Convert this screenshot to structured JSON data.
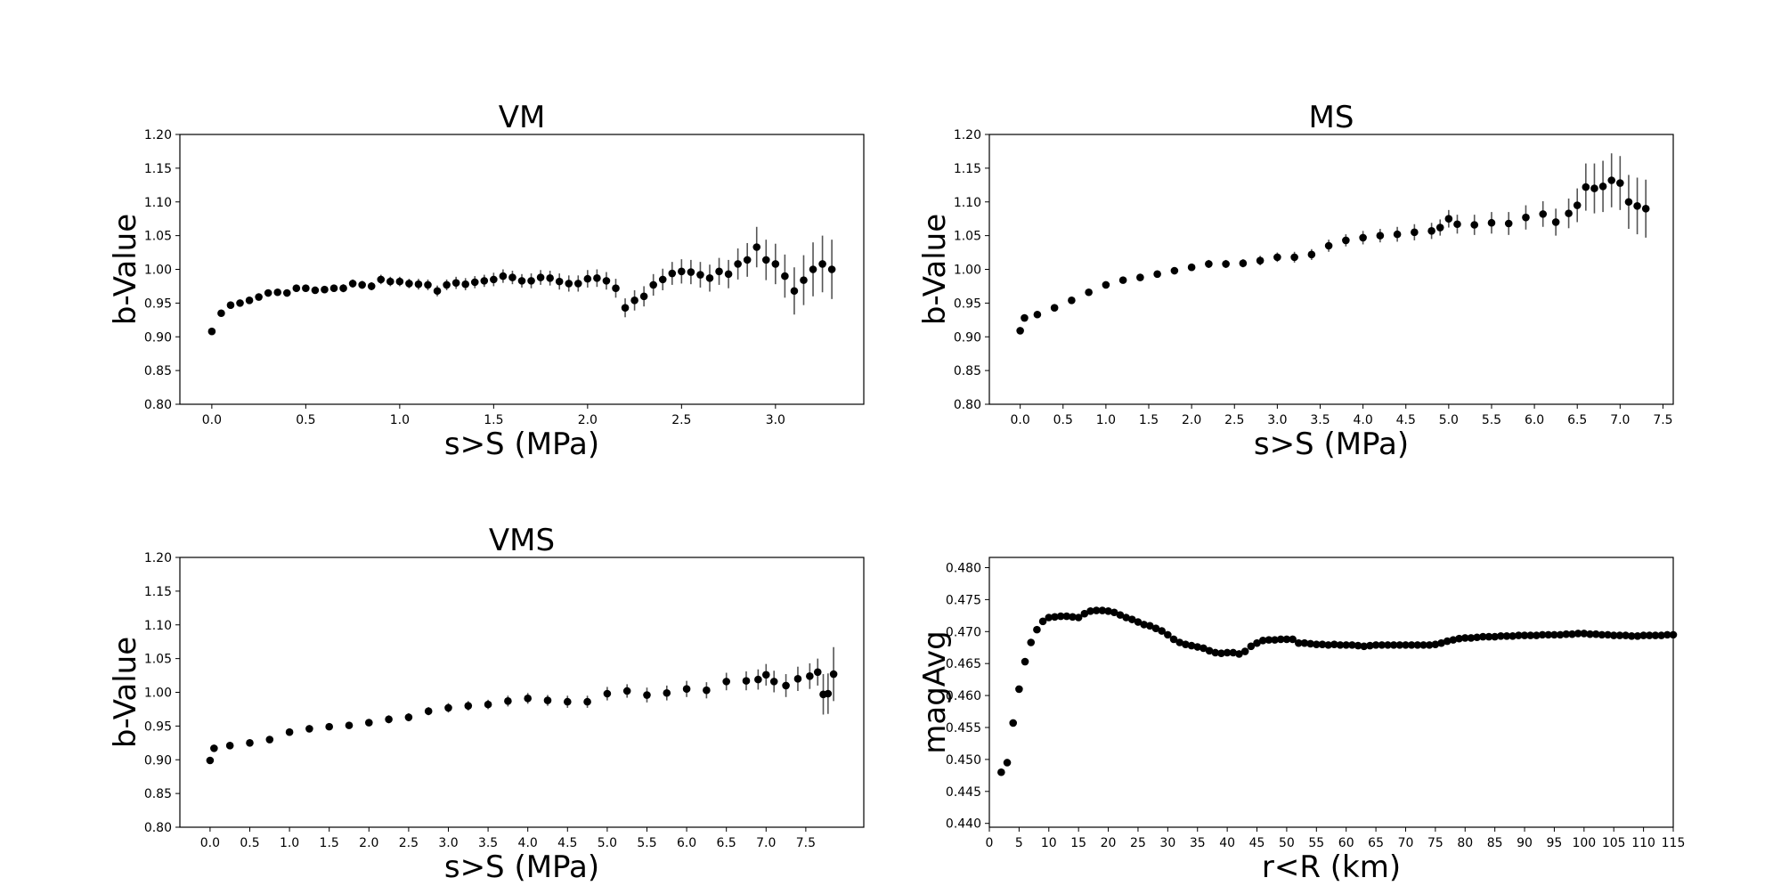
{
  "chart_data": [
    {
      "type": "scatter",
      "title": "VM",
      "xlabel": "s>S (MPa)",
      "ylabel": "b-Value",
      "xlim": [
        -0.17,
        3.47
      ],
      "ylim": [
        0.8,
        1.2
      ],
      "xticks": [
        0.0,
        0.5,
        1.0,
        1.5,
        2.0,
        2.5,
        3.0
      ],
      "yticks": [
        0.8,
        0.85,
        0.9,
        0.95,
        1.0,
        1.05,
        1.1,
        1.15,
        1.2
      ],
      "tick_decimals": {
        "x": 1,
        "y": 2
      },
      "error_bars": true,
      "points": [
        [
          0.0,
          0.908
        ],
        [
          0.05,
          0.935
        ],
        [
          0.1,
          0.947
        ],
        [
          0.15,
          0.95
        ],
        [
          0.2,
          0.954
        ],
        [
          0.25,
          0.959
        ],
        [
          0.3,
          0.965
        ],
        [
          0.35,
          0.966
        ],
        [
          0.4,
          0.965
        ],
        [
          0.45,
          0.972
        ],
        [
          0.5,
          0.972
        ],
        [
          0.55,
          0.969
        ],
        [
          0.6,
          0.97
        ],
        [
          0.65,
          0.972
        ],
        [
          0.7,
          0.972
        ],
        [
          0.75,
          0.979
        ],
        [
          0.8,
          0.977
        ],
        [
          0.85,
          0.975
        ],
        [
          0.9,
          0.985
        ],
        [
          0.95,
          0.982
        ],
        [
          1.0,
          0.982
        ],
        [
          1.05,
          0.979
        ],
        [
          1.1,
          0.978
        ],
        [
          1.15,
          0.977
        ],
        [
          1.2,
          0.968
        ],
        [
          1.25,
          0.977
        ],
        [
          1.3,
          0.98
        ],
        [
          1.35,
          0.978
        ],
        [
          1.4,
          0.981
        ],
        [
          1.45,
          0.983
        ],
        [
          1.5,
          0.985
        ],
        [
          1.55,
          0.99
        ],
        [
          1.6,
          0.988
        ],
        [
          1.65,
          0.983
        ],
        [
          1.7,
          0.983
        ],
        [
          1.75,
          0.988
        ],
        [
          1.8,
          0.987
        ],
        [
          1.85,
          0.982
        ],
        [
          1.9,
          0.979
        ],
        [
          1.95,
          0.979
        ],
        [
          2.0,
          0.986
        ],
        [
          2.05,
          0.987
        ],
        [
          2.1,
          0.983
        ],
        [
          2.15,
          0.972
        ],
        [
          2.2,
          0.943
        ],
        [
          2.25,
          0.954
        ],
        [
          2.3,
          0.96
        ],
        [
          2.35,
          0.977
        ],
        [
          2.4,
          0.985
        ],
        [
          2.45,
          0.994
        ],
        [
          2.5,
          0.997
        ],
        [
          2.55,
          0.996
        ],
        [
          2.6,
          0.992
        ],
        [
          2.65,
          0.987
        ],
        [
          2.7,
          0.997
        ],
        [
          2.75,
          0.993
        ],
        [
          2.8,
          1.008
        ],
        [
          2.85,
          1.014
        ],
        [
          2.9,
          1.033
        ],
        [
          2.95,
          1.014
        ],
        [
          3.0,
          1.008
        ],
        [
          3.05,
          0.99
        ],
        [
          3.1,
          0.968
        ],
        [
          3.15,
          0.984
        ],
        [
          3.2,
          1.0
        ],
        [
          3.25,
          1.008
        ],
        [
          3.3,
          1.0
        ]
      ],
      "errors": [
        0,
        0.003,
        0.003,
        0.003,
        0.003,
        0.004,
        0.004,
        0.004,
        0.004,
        0.004,
        0.005,
        0.005,
        0.005,
        0.005,
        0.006,
        0.006,
        0.006,
        0.006,
        0.007,
        0.007,
        0.007,
        0.007,
        0.008,
        0.008,
        0.008,
        0.008,
        0.009,
        0.009,
        0.009,
        0.009,
        0.01,
        0.01,
        0.01,
        0.01,
        0.011,
        0.011,
        0.011,
        0.012,
        0.012,
        0.012,
        0.013,
        0.013,
        0.013,
        0.014,
        0.014,
        0.015,
        0.015,
        0.016,
        0.016,
        0.017,
        0.018,
        0.018,
        0.019,
        0.02,
        0.02,
        0.021,
        0.023,
        0.025,
        0.03,
        0.03,
        0.03,
        0.032,
        0.035,
        0.037,
        0.04,
        0.042,
        0.044
      ]
    },
    {
      "type": "scatter",
      "title": "MS",
      "xlabel": "s>S (MPa)",
      "ylabel": "b-Value",
      "xlim": [
        -0.36,
        7.62
      ],
      "ylim": [
        0.8,
        1.2
      ],
      "xticks": [
        0.0,
        0.5,
        1.0,
        1.5,
        2.0,
        2.5,
        3.0,
        3.5,
        4.0,
        4.5,
        5.0,
        5.5,
        6.0,
        6.5,
        7.0,
        7.5
      ],
      "yticks": [
        0.8,
        0.85,
        0.9,
        0.95,
        1.0,
        1.05,
        1.1,
        1.15,
        1.2
      ],
      "tick_decimals": {
        "x": 1,
        "y": 2
      },
      "error_bars": true,
      "points": [
        [
          0.0,
          0.909
        ],
        [
          0.05,
          0.928
        ],
        [
          0.2,
          0.933
        ],
        [
          0.4,
          0.943
        ],
        [
          0.6,
          0.954
        ],
        [
          0.8,
          0.966
        ],
        [
          1.0,
          0.977
        ],
        [
          1.2,
          0.984
        ],
        [
          1.4,
          0.988
        ],
        [
          1.6,
          0.993
        ],
        [
          1.8,
          0.998
        ],
        [
          2.0,
          1.003
        ],
        [
          2.2,
          1.008
        ],
        [
          2.4,
          1.008
        ],
        [
          2.6,
          1.009
        ],
        [
          2.8,
          1.013
        ],
        [
          3.0,
          1.018
        ],
        [
          3.2,
          1.018
        ],
        [
          3.4,
          1.022
        ],
        [
          3.6,
          1.035
        ],
        [
          3.8,
          1.043
        ],
        [
          4.0,
          1.047
        ],
        [
          4.2,
          1.05
        ],
        [
          4.4,
          1.052
        ],
        [
          4.6,
          1.055
        ],
        [
          4.8,
          1.057
        ],
        [
          4.9,
          1.062
        ],
        [
          5.0,
          1.075
        ],
        [
          5.1,
          1.067
        ],
        [
          5.3,
          1.066
        ],
        [
          5.5,
          1.069
        ],
        [
          5.7,
          1.068
        ],
        [
          5.9,
          1.077
        ],
        [
          6.1,
          1.082
        ],
        [
          6.25,
          1.07
        ],
        [
          6.4,
          1.083
        ],
        [
          6.5,
          1.095
        ],
        [
          6.6,
          1.122
        ],
        [
          6.7,
          1.12
        ],
        [
          6.8,
          1.123
        ],
        [
          6.9,
          1.132
        ],
        [
          7.0,
          1.128
        ],
        [
          7.1,
          1.1
        ],
        [
          7.2,
          1.094
        ],
        [
          7.3,
          1.09
        ]
      ],
      "errors": [
        0,
        0.003,
        0.003,
        0.003,
        0.003,
        0.004,
        0.004,
        0.004,
        0.004,
        0.005,
        0.005,
        0.005,
        0.006,
        0.006,
        0.006,
        0.007,
        0.007,
        0.008,
        0.008,
        0.009,
        0.009,
        0.01,
        0.01,
        0.011,
        0.012,
        0.012,
        0.012,
        0.013,
        0.014,
        0.015,
        0.016,
        0.017,
        0.018,
        0.019,
        0.02,
        0.022,
        0.025,
        0.035,
        0.037,
        0.038,
        0.04,
        0.04,
        0.04,
        0.042,
        0.043
      ]
    },
    {
      "type": "scatter",
      "title": "VMS",
      "xlabel": "s>S (MPa)",
      "ylabel": "b-Value",
      "xlim": [
        -0.38,
        8.23
      ],
      "ylim": [
        0.8,
        1.2
      ],
      "xticks": [
        0.0,
        0.5,
        1.0,
        1.5,
        2.0,
        2.5,
        3.0,
        3.5,
        4.0,
        4.5,
        5.0,
        5.5,
        6.0,
        6.5,
        7.0,
        7.5
      ],
      "yticks": [
        0.8,
        0.85,
        0.9,
        0.95,
        1.0,
        1.05,
        1.1,
        1.15,
        1.2
      ],
      "tick_decimals": {
        "x": 1,
        "y": 2
      },
      "error_bars": true,
      "points": [
        [
          0.0,
          0.899
        ],
        [
          0.05,
          0.917
        ],
        [
          0.25,
          0.921
        ],
        [
          0.5,
          0.925
        ],
        [
          0.75,
          0.93
        ],
        [
          1.0,
          0.941
        ],
        [
          1.25,
          0.946
        ],
        [
          1.5,
          0.949
        ],
        [
          1.75,
          0.951
        ],
        [
          2.0,
          0.955
        ],
        [
          2.25,
          0.96
        ],
        [
          2.5,
          0.963
        ],
        [
          2.75,
          0.972
        ],
        [
          3.0,
          0.977
        ],
        [
          3.25,
          0.98
        ],
        [
          3.5,
          0.982
        ],
        [
          3.75,
          0.987
        ],
        [
          4.0,
          0.991
        ],
        [
          4.25,
          0.988
        ],
        [
          4.5,
          0.986
        ],
        [
          4.75,
          0.986
        ],
        [
          5.0,
          0.998
        ],
        [
          5.25,
          1.002
        ],
        [
          5.5,
          0.996
        ],
        [
          5.75,
          0.999
        ],
        [
          6.0,
          1.005
        ],
        [
          6.25,
          1.003
        ],
        [
          6.5,
          1.016
        ],
        [
          6.75,
          1.017
        ],
        [
          6.9,
          1.019
        ],
        [
          7.0,
          1.026
        ],
        [
          7.1,
          1.016
        ],
        [
          7.25,
          1.01
        ],
        [
          7.4,
          1.02
        ],
        [
          7.55,
          1.024
        ],
        [
          7.65,
          1.03
        ],
        [
          7.72,
          0.997
        ],
        [
          7.78,
          0.998
        ],
        [
          7.85,
          1.027
        ]
      ],
      "errors": [
        0,
        0.003,
        0.003,
        0.003,
        0.004,
        0.004,
        0.004,
        0.005,
        0.005,
        0.005,
        0.006,
        0.006,
        0.006,
        0.007,
        0.007,
        0.007,
        0.008,
        0.008,
        0.008,
        0.009,
        0.009,
        0.01,
        0.01,
        0.011,
        0.011,
        0.012,
        0.012,
        0.013,
        0.014,
        0.015,
        0.016,
        0.016,
        0.017,
        0.018,
        0.019,
        0.02,
        0.03,
        0.03,
        0.04
      ]
    },
    {
      "type": "scatter",
      "title": "",
      "xlabel": "r<R (km)",
      "ylabel": "magAvg",
      "xlim": [
        0,
        115
      ],
      "ylim": [
        0.4394,
        0.4816
      ],
      "xticks": [
        0,
        5,
        10,
        15,
        20,
        25,
        30,
        35,
        40,
        45,
        50,
        55,
        60,
        65,
        70,
        75,
        80,
        85,
        90,
        95,
        100,
        105,
        110,
        115
      ],
      "yticks": [
        0.44,
        0.445,
        0.45,
        0.455,
        0.46,
        0.465,
        0.47,
        0.475,
        0.48
      ],
      "tick_decimals": {
        "x": 0,
        "y": 3
      },
      "error_bars": false,
      "points": [
        [
          2,
          0.448
        ],
        [
          3,
          0.4495
        ],
        [
          4,
          0.4557
        ],
        [
          5,
          0.461
        ],
        [
          6,
          0.4653
        ],
        [
          7,
          0.4683
        ],
        [
          8,
          0.4703
        ],
        [
          9,
          0.4716
        ],
        [
          10,
          0.4722
        ],
        [
          11,
          0.4723
        ],
        [
          12,
          0.4724
        ],
        [
          13,
          0.4724
        ],
        [
          14,
          0.4723
        ],
        [
          15,
          0.4722
        ],
        [
          16,
          0.4728
        ],
        [
          17,
          0.4732
        ],
        [
          18,
          0.4733
        ],
        [
          19,
          0.4733
        ],
        [
          20,
          0.4732
        ],
        [
          21,
          0.473
        ],
        [
          22,
          0.4726
        ],
        [
          23,
          0.4722
        ],
        [
          24,
          0.4719
        ],
        [
          25,
          0.4715
        ],
        [
          26,
          0.4711
        ],
        [
          27,
          0.4709
        ],
        [
          28,
          0.4705
        ],
        [
          29,
          0.4701
        ],
        [
          30,
          0.4695
        ],
        [
          31,
          0.4688
        ],
        [
          32,
          0.4683
        ],
        [
          33,
          0.468
        ],
        [
          34,
          0.4678
        ],
        [
          35,
          0.4676
        ],
        [
          36,
          0.4674
        ],
        [
          37,
          0.467
        ],
        [
          38,
          0.4667
        ],
        [
          39,
          0.4666
        ],
        [
          40,
          0.4667
        ],
        [
          41,
          0.4667
        ],
        [
          42,
          0.4665
        ],
        [
          43,
          0.4669
        ],
        [
          44,
          0.4677
        ],
        [
          45,
          0.4682
        ],
        [
          46,
          0.4686
        ],
        [
          47,
          0.4687
        ],
        [
          48,
          0.4687
        ],
        [
          49,
          0.4688
        ],
        [
          50,
          0.4688
        ],
        [
          51,
          0.4688
        ],
        [
          52,
          0.4682
        ],
        [
          53,
          0.4682
        ],
        [
          54,
          0.4681
        ],
        [
          55,
          0.468
        ],
        [
          56,
          0.468
        ],
        [
          57,
          0.4679
        ],
        [
          58,
          0.468
        ],
        [
          59,
          0.4679
        ],
        [
          60,
          0.4679
        ],
        [
          61,
          0.4679
        ],
        [
          62,
          0.4678
        ],
        [
          63,
          0.4677
        ],
        [
          64,
          0.4678
        ],
        [
          65,
          0.4679
        ],
        [
          66,
          0.4679
        ],
        [
          67,
          0.4679
        ],
        [
          68,
          0.4679
        ],
        [
          69,
          0.4679
        ],
        [
          70,
          0.4679
        ],
        [
          71,
          0.4679
        ],
        [
          72,
          0.4679
        ],
        [
          73,
          0.4679
        ],
        [
          74,
          0.4679
        ],
        [
          75,
          0.468
        ],
        [
          76,
          0.4682
        ],
        [
          77,
          0.4685
        ],
        [
          78,
          0.4687
        ],
        [
          79,
          0.4689
        ],
        [
          80,
          0.469
        ],
        [
          81,
          0.469
        ],
        [
          82,
          0.4691
        ],
        [
          83,
          0.4692
        ],
        [
          84,
          0.4692
        ],
        [
          85,
          0.4692
        ],
        [
          86,
          0.4693
        ],
        [
          87,
          0.4693
        ],
        [
          88,
          0.4693
        ],
        [
          89,
          0.4694
        ],
        [
          90,
          0.4694
        ],
        [
          91,
          0.4694
        ],
        [
          92,
          0.4694
        ],
        [
          93,
          0.4695
        ],
        [
          94,
          0.4695
        ],
        [
          95,
          0.4695
        ],
        [
          96,
          0.4695
        ],
        [
          97,
          0.4696
        ],
        [
          98,
          0.4696
        ],
        [
          99,
          0.4697
        ],
        [
          100,
          0.4697
        ],
        [
          101,
          0.4696
        ],
        [
          102,
          0.4696
        ],
        [
          103,
          0.4695
        ],
        [
          104,
          0.4695
        ],
        [
          105,
          0.4694
        ],
        [
          106,
          0.4694
        ],
        [
          107,
          0.4694
        ],
        [
          108,
          0.4693
        ],
        [
          109,
          0.4693
        ],
        [
          110,
          0.4694
        ],
        [
          111,
          0.4694
        ],
        [
          112,
          0.4694
        ],
        [
          113,
          0.4694
        ],
        [
          114,
          0.4695
        ],
        [
          115,
          0.4695
        ]
      ]
    }
  ]
}
